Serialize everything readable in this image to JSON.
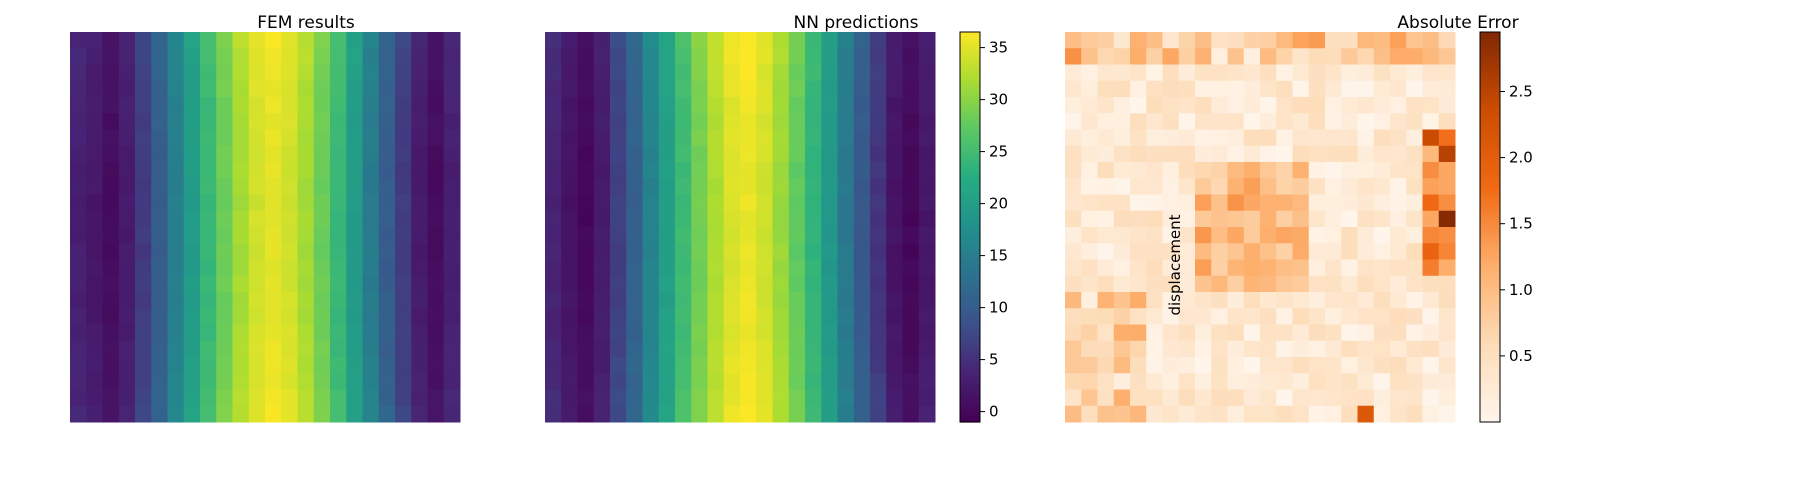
{
  "figure": {
    "titles": [
      "FEM results",
      "NN predictions",
      "Absolute Error"
    ],
    "colorbar_displacement": {
      "label": "displacement",
      "ticks": [
        "0",
        "5",
        "10",
        "15",
        "20",
        "25",
        "30",
        "35"
      ],
      "tick_values": [
        0,
        5,
        10,
        15,
        20,
        25,
        30,
        35
      ],
      "range": [
        -1,
        36.5
      ]
    },
    "colorbar_error": {
      "label": "",
      "ticks": [
        "0.5",
        "1.0",
        "1.5",
        "2.0",
        "2.5"
      ],
      "tick_values": [
        0.5,
        1.0,
        1.5,
        2.0,
        2.5
      ],
      "range": [
        0.0,
        2.95
      ]
    },
    "colormaps": {
      "viridis": "viridis",
      "error": "Oranges"
    }
  },
  "chart_data": [
    {
      "type": "heatmap",
      "title": "FEM results",
      "grid_size": [
        24,
        24
      ],
      "colormap": "viridis",
      "vrange": [
        -1,
        36.5
      ],
      "description_profile": "displacement varies mostly along x: low (~0) near both sides, peak (~35) at center columns",
      "column_profile": [
        3.5,
        2.5,
        1.0,
        3.0,
        6.5,
        10.5,
        15.5,
        20.0,
        24.5,
        28.5,
        32.0,
        34.5,
        35.5,
        34.5,
        32.0,
        28.5,
        24.5,
        20.0,
        15.0,
        10.5,
        6.5,
        3.0,
        1.0,
        3.5
      ]
    },
    {
      "type": "heatmap",
      "title": "NN predictions",
      "grid_size": [
        24,
        24
      ],
      "colormap": "viridis",
      "vrange": [
        -1,
        36.5
      ],
      "column_profile": [
        4.0,
        2.0,
        0.5,
        3.0,
        7.0,
        11.0,
        16.0,
        20.5,
        25.0,
        29.0,
        32.5,
        35.0,
        36.0,
        34.5,
        31.5,
        28.0,
        24.0,
        19.5,
        14.5,
        10.0,
        6.0,
        2.0,
        0.5,
        2.5
      ]
    },
    {
      "type": "heatmap",
      "title": "Absolute Error",
      "grid_size": [
        24,
        24
      ],
      "colormap": "Oranges",
      "vrange": [
        0.0,
        2.95
      ],
      "peak_value": 2.9
    }
  ]
}
